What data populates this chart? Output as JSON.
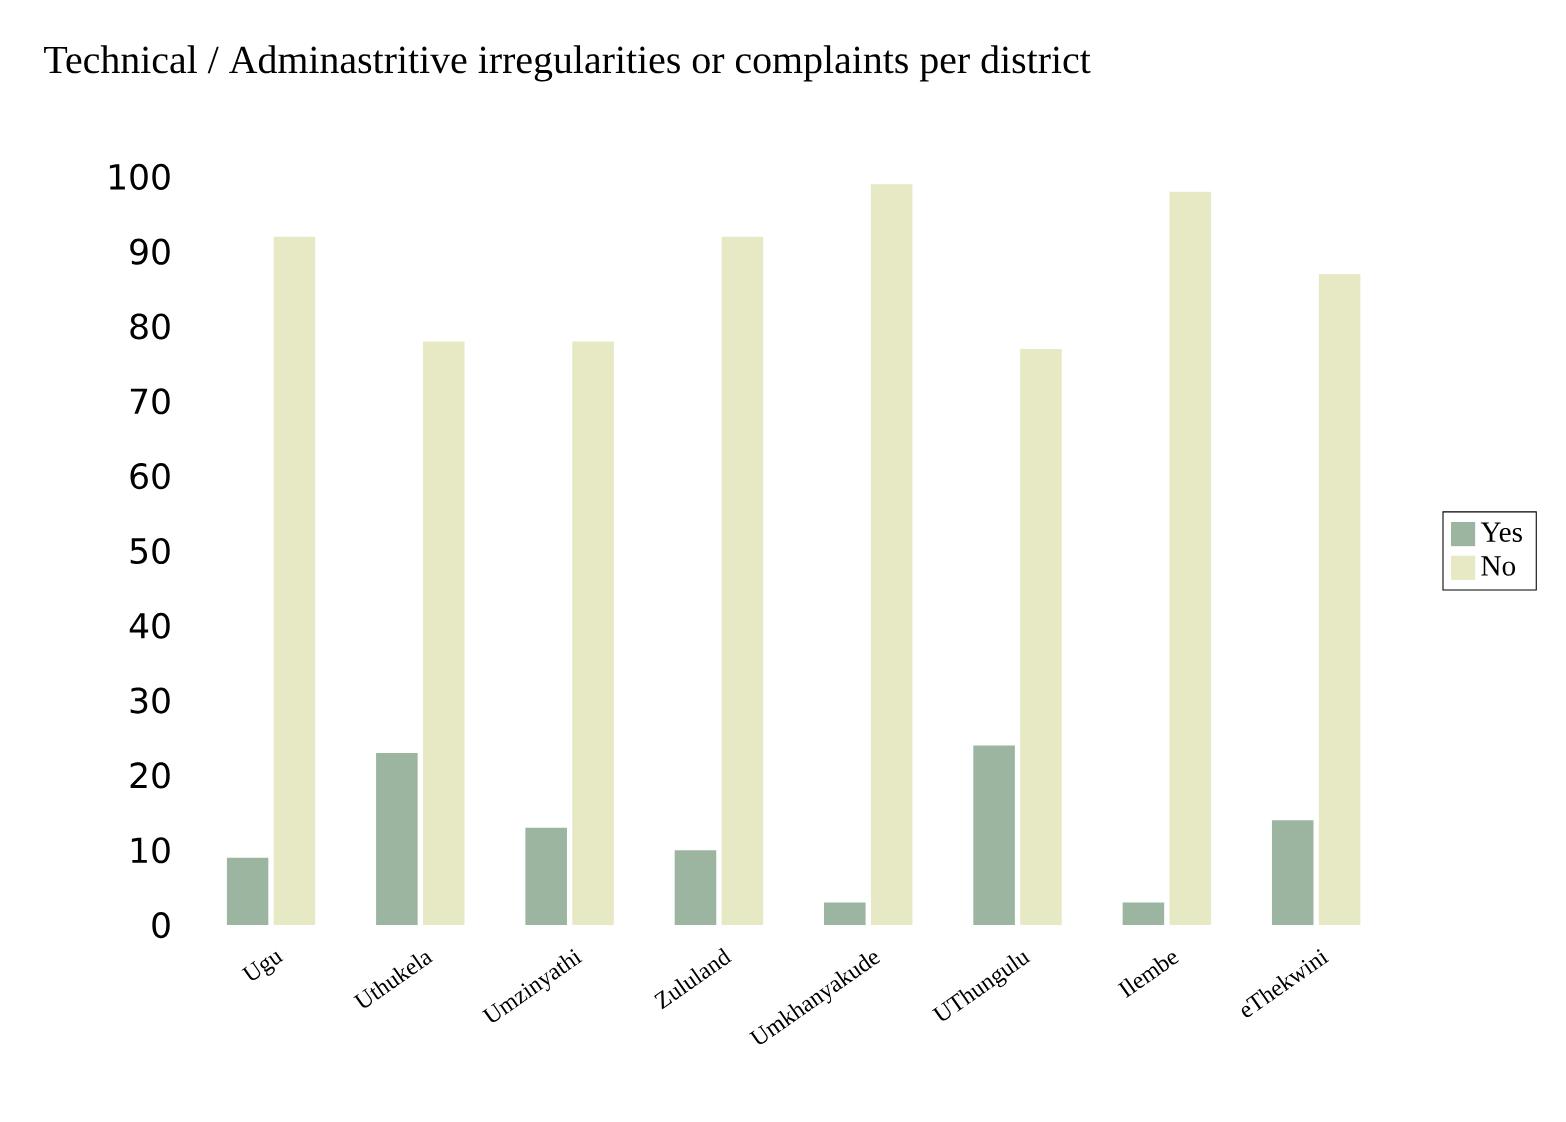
{
  "chart_data": {
    "type": "bar",
    "title": "Technical / Adminastritive irregularities or complaints per district",
    "categories": [
      "Ugu",
      "Uthukela",
      "Umzinyathi",
      "Zululand",
      "Umkhanyakude",
      "UThungulu",
      "Ilembe",
      "eThekwini"
    ],
    "series": [
      {
        "name": "Yes",
        "color": "#9bb5a0",
        "values": [
          9,
          23,
          13,
          10,
          3,
          24,
          3,
          14
        ]
      },
      {
        "name": "No",
        "color": "#e6e9c4",
        "values": [
          92,
          78,
          78,
          92,
          99,
          77,
          98,
          87
        ]
      }
    ],
    "ylim": [
      0,
      100
    ],
    "yticks": [
      0,
      10,
      20,
      30,
      40,
      50,
      60,
      70,
      80,
      90,
      100
    ],
    "grid": false,
    "legend": "right"
  }
}
